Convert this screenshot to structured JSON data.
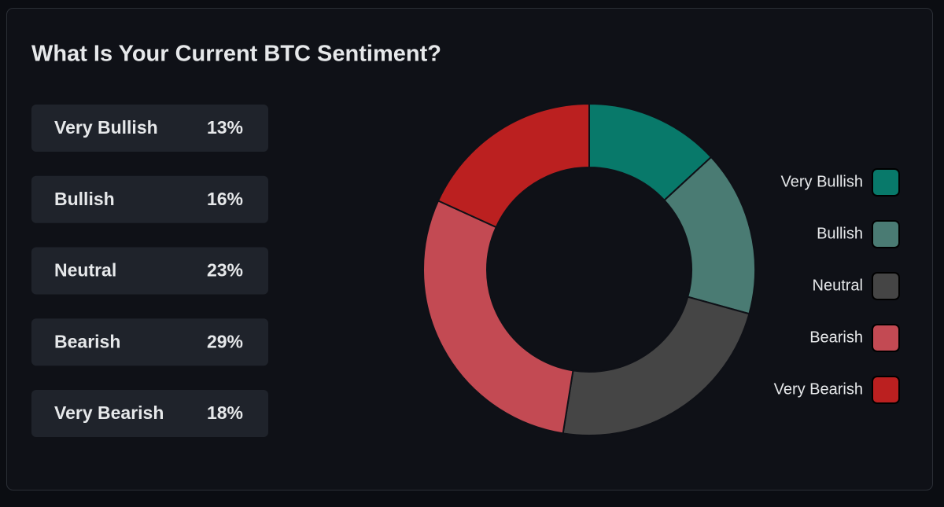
{
  "chart_data": {
    "type": "pie",
    "donut": true,
    "title": "What Is Your Current BTC Sentiment?",
    "categories": [
      "Very Bullish",
      "Bullish",
      "Neutral",
      "Bearish",
      "Very Bearish"
    ],
    "values": [
      13,
      16,
      23,
      29,
      18
    ],
    "value_labels": [
      "13%",
      "16%",
      "23%",
      "29%",
      "18%"
    ],
    "colors": [
      "#08796a",
      "#4a7b73",
      "#454545",
      "#c34a53",
      "#bb2020"
    ],
    "legend": "right"
  }
}
